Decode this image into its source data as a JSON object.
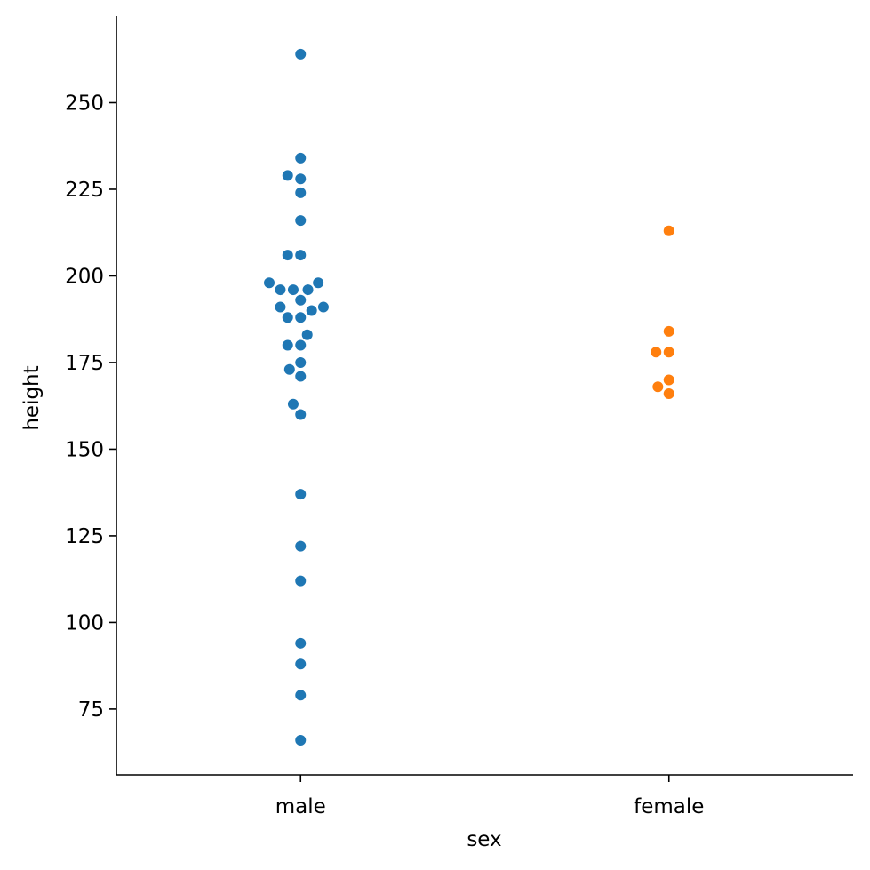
{
  "chart_data": {
    "type": "scatter",
    "subtype": "swarm",
    "xlabel": "sex",
    "ylabel": "height",
    "categories": [
      "male",
      "female"
    ],
    "ylim": [
      56,
      275
    ],
    "yticks": [
      75,
      100,
      125,
      150,
      175,
      200,
      225,
      250
    ],
    "grid": false,
    "series": [
      {
        "category": "male",
        "color": "#1f77b4",
        "points": [
          {
            "offset": 0,
            "y": 264
          },
          {
            "offset": 0,
            "y": 234
          },
          {
            "offset": -0.035,
            "y": 229
          },
          {
            "offset": 0,
            "y": 228
          },
          {
            "offset": 0,
            "y": 224
          },
          {
            "offset": 0,
            "y": 216
          },
          {
            "offset": -0.035,
            "y": 206
          },
          {
            "offset": 0,
            "y": 206
          },
          {
            "offset": -0.085,
            "y": 198
          },
          {
            "offset": 0.048,
            "y": 198
          },
          {
            "offset": -0.055,
            "y": 196
          },
          {
            "offset": -0.02,
            "y": 196
          },
          {
            "offset": 0.02,
            "y": 196
          },
          {
            "offset": 0,
            "y": 193
          },
          {
            "offset": -0.055,
            "y": 191
          },
          {
            "offset": 0.062,
            "y": 191
          },
          {
            "offset": 0.03,
            "y": 190
          },
          {
            "offset": -0.035,
            "y": 188
          },
          {
            "offset": 0,
            "y": 188
          },
          {
            "offset": 0.018,
            "y": 183
          },
          {
            "offset": -0.035,
            "y": 180
          },
          {
            "offset": 0,
            "y": 180
          },
          {
            "offset": 0,
            "y": 175
          },
          {
            "offset": -0.03,
            "y": 173
          },
          {
            "offset": 0,
            "y": 171
          },
          {
            "offset": -0.02,
            "y": 163
          },
          {
            "offset": 0,
            "y": 160
          },
          {
            "offset": 0,
            "y": 137
          },
          {
            "offset": 0,
            "y": 122
          },
          {
            "offset": 0,
            "y": 112
          },
          {
            "offset": 0,
            "y": 94
          },
          {
            "offset": 0,
            "y": 88
          },
          {
            "offset": 0,
            "y": 79
          },
          {
            "offset": 0,
            "y": 66
          }
        ]
      },
      {
        "category": "female",
        "color": "#ff7f0e",
        "points": [
          {
            "offset": 0,
            "y": 213
          },
          {
            "offset": 0,
            "y": 184
          },
          {
            "offset": -0.035,
            "y": 178
          },
          {
            "offset": 0,
            "y": 178
          },
          {
            "offset": 0,
            "y": 170
          },
          {
            "offset": -0.03,
            "y": 168
          },
          {
            "offset": 0,
            "y": 166
          }
        ]
      }
    ]
  }
}
